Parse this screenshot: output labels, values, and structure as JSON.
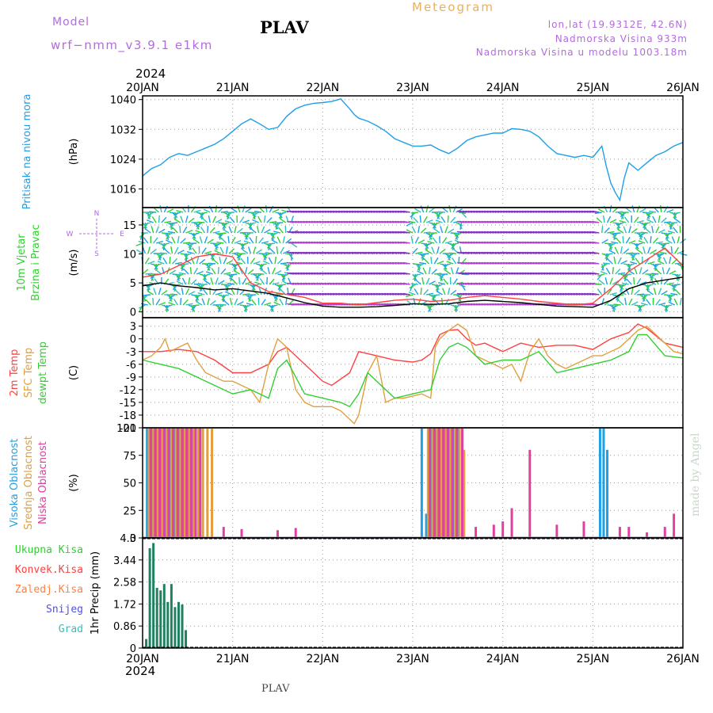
{
  "header": {
    "model_label": "Model",
    "model_name": "wrf−nmm_v3.9.1  e1km",
    "station": "PLAV",
    "meteogram_label": "Meteogram",
    "coords": "lon,lat (19.9312E, 42.6N)",
    "altitude": "Nadmorska Visina 933m",
    "model_altitude": "Nadmorska Visina u modelu 1003.18m",
    "watermark": "made by Angel",
    "footer_station": "PLAV",
    "colors": {
      "purple": "#b26be0",
      "orange": "#e8b060",
      "title": "#000000",
      "watermark": "#c8d8c8"
    }
  },
  "time_axis": {
    "year": "2024",
    "labels": [
      "20JAN",
      "21JAN",
      "22JAN",
      "23JAN",
      "24JAN",
      "25JAN",
      "26JAN"
    ]
  },
  "chart_data": [
    {
      "type": "line",
      "id": "pressure",
      "ylabel_lines": [
        "Pritisak na nivou mora"
      ],
      "unit": "(hPa)",
      "ylim": [
        1011,
        1041
      ],
      "yticks": [
        1016,
        1024,
        1032,
        1040
      ],
      "grid": true,
      "series": [
        {
          "color": "#1ea0e6",
          "x": [
            0,
            0.1,
            0.2,
            0.3,
            0.4,
            0.5,
            0.6,
            0.7,
            0.8,
            0.9,
            1.0,
            1.1,
            1.2,
            1.3,
            1.4,
            1.5,
            1.6,
            1.7,
            1.8,
            1.9,
            2.0,
            2.1,
            2.2,
            2.3,
            2.35,
            2.4,
            2.5,
            2.6,
            2.7,
            2.8,
            2.9,
            3.0,
            3.1,
            3.2,
            3.3,
            3.4,
            3.5,
            3.6,
            3.7,
            3.8,
            3.9,
            4.0,
            4.1,
            4.2,
            4.3,
            4.4,
            4.5,
            4.6,
            4.7,
            4.8,
            4.9,
            5.0,
            5.05,
            5.1,
            5.15,
            5.2,
            5.25,
            5.3,
            5.35,
            5.4,
            5.5,
            5.6,
            5.7,
            5.8,
            5.9,
            6.0
          ],
          "y": [
            1019.5,
            1021.5,
            1022.5,
            1024.5,
            1025.5,
            1025,
            1026,
            1027,
            1028,
            1029.5,
            1031.5,
            1033.5,
            1034.8,
            1033.5,
            1032,
            1032.5,
            1035.5,
            1037.5,
            1038.5,
            1039,
            1039.2,
            1039.5,
            1040.2,
            1037.5,
            1036,
            1035,
            1034.2,
            1033,
            1031.5,
            1029.5,
            1028.5,
            1027.5,
            1027.5,
            1027.8,
            1026.5,
            1025.5,
            1027,
            1029,
            1030,
            1030.5,
            1031,
            1031,
            1032.2,
            1032,
            1031.5,
            1030,
            1027.5,
            1025.5,
            1025,
            1024.5,
            1025,
            1024.5,
            1026,
            1027.5,
            1022,
            1017.5,
            1015,
            1013,
            1019,
            1023,
            1021,
            1023,
            1025,
            1026,
            1027.5,
            1028.5
          ]
        }
      ]
    },
    {
      "type": "wind",
      "id": "wind",
      "ylabel_lines": [
        "10m Vjetar",
        "Brzina i Pravac"
      ],
      "unit": "(m/s)",
      "ylim": [
        -1,
        18
      ],
      "yticks": [
        0,
        5,
        10,
        15
      ],
      "grid": true,
      "compass": {
        "n": "N",
        "w": "W",
        "e": "E",
        "s": "S"
      },
      "series": [
        {
          "name": "speed",
          "color": "#000000",
          "x": [
            0,
            0.2,
            0.4,
            0.6,
            0.8,
            1.0,
            1.2,
            1.4,
            1.6,
            1.8,
            2.0,
            2.2,
            2.4,
            2.6,
            2.8,
            3.0,
            3.2,
            3.4,
            3.6,
            3.8,
            4.0,
            4.2,
            4.4,
            4.6,
            4.8,
            5.0,
            5.2,
            5.4,
            5.6,
            5.8,
            6.0
          ],
          "y": [
            4.5,
            5,
            4.5,
            4.2,
            3.8,
            4,
            3.6,
            3.2,
            2.4,
            1.6,
            1,
            0.8,
            0.8,
            0.9,
            1.1,
            1.4,
            1.3,
            1.4,
            1.8,
            2.0,
            1.8,
            1.6,
            1.3,
            1.0,
            0.9,
            0.8,
            2.0,
            4.0,
            5.0,
            5.5,
            6.0
          ]
        },
        {
          "name": "gust",
          "color": "#ff4040",
          "x": [
            0,
            0.2,
            0.4,
            0.6,
            0.8,
            1.0,
            1.2,
            1.4,
            1.6,
            1.8,
            2.0,
            2.2,
            2.4,
            2.6,
            2.8,
            3.0,
            3.2,
            3.4,
            3.6,
            3.8,
            4.0,
            4.2,
            4.4,
            4.6,
            4.8,
            5.0,
            5.2,
            5.4,
            5.6,
            5.8,
            6.0
          ],
          "y": [
            6,
            6.5,
            8,
            9.5,
            10,
            9.5,
            5,
            3.5,
            3,
            2.5,
            1.5,
            1.5,
            1.2,
            1.6,
            2,
            2.2,
            1.8,
            2,
            2.5,
            2.8,
            2.5,
            2.2,
            1.8,
            1.5,
            1.2,
            1.5,
            4,
            7,
            9,
            11,
            8
          ]
        }
      ]
    },
    {
      "type": "line",
      "id": "temperature",
      "ylabel_lines": [
        "2m Temp",
        "SFC Temp",
        "dewpt Temp"
      ],
      "unit": "(C)",
      "ylim": [
        -21,
        5
      ],
      "yticks": [
        3,
        0,
        -3,
        -6,
        -9,
        -12,
        -15,
        -18,
        -21
      ],
      "grid": true,
      "series": [
        {
          "name": "2m Temp",
          "color": "#ff4040",
          "x": [
            0,
            0.2,
            0.4,
            0.6,
            0.8,
            1.0,
            1.2,
            1.4,
            1.5,
            1.6,
            1.8,
            2.0,
            2.1,
            2.3,
            2.4,
            2.6,
            2.8,
            3.0,
            3.1,
            3.2,
            3.3,
            3.4,
            3.5,
            3.6,
            3.7,
            3.8,
            4.0,
            4.2,
            4.4,
            4.6,
            4.8,
            5.0,
            5.2,
            5.4,
            5.5,
            5.6,
            5.8,
            6.0
          ],
          "y": [
            -3,
            -3,
            -2.5,
            -3,
            -5,
            -8,
            -8,
            -6,
            -3,
            -2,
            -6,
            -10,
            -11,
            -8,
            -3,
            -4,
            -5,
            -5.5,
            -5,
            -3.5,
            1,
            2,
            2.2,
            0,
            -1.5,
            -1,
            -3,
            -1,
            -2,
            -1.5,
            -1.5,
            -2.5,
            0,
            1.5,
            3.5,
            2.5,
            -1,
            -2
          ]
        },
        {
          "name": "SFC Temp",
          "color": "#e0a040",
          "x": [
            0,
            0.1,
            0.2,
            0.25,
            0.3,
            0.4,
            0.5,
            0.6,
            0.7,
            0.8,
            0.9,
            1.0,
            1.1,
            1.2,
            1.3,
            1.4,
            1.5,
            1.6,
            1.7,
            1.8,
            1.9,
            2.0,
            2.1,
            2.2,
            2.3,
            2.35,
            2.4,
            2.5,
            2.6,
            2.7,
            2.8,
            2.9,
            3.0,
            3.1,
            3.2,
            3.25,
            3.3,
            3.4,
            3.5,
            3.6,
            3.7,
            3.8,
            3.9,
            4.0,
            4.1,
            4.2,
            4.3,
            4.4,
            4.5,
            4.6,
            4.7,
            4.8,
            4.9,
            5.0,
            5.1,
            5.2,
            5.3,
            5.4,
            5.5,
            5.6,
            5.7,
            5.8,
            5.9,
            6.0
          ],
          "y": [
            -5,
            -4,
            -2,
            0,
            -3,
            -2,
            -1,
            -5,
            -8,
            -9,
            -10,
            -10,
            -11,
            -12,
            -15,
            -6,
            0,
            -2,
            -12,
            -15,
            -16,
            -16,
            -16,
            -17,
            -19,
            -20,
            -18,
            -8,
            -4,
            -15,
            -14,
            -14,
            -13.5,
            -13,
            -14,
            -2,
            0,
            2,
            3.5,
            2,
            -4,
            -5,
            -6,
            -7,
            -6,
            -10,
            -3,
            0,
            -4,
            -6,
            -7,
            -6,
            -5,
            -4,
            -4,
            -3,
            -2,
            0,
            2,
            3,
            1,
            -1,
            -3,
            -3.5
          ]
        },
        {
          "name": "dewpt Temp",
          "color": "#30d030",
          "x": [
            0,
            0.2,
            0.4,
            0.6,
            0.8,
            1.0,
            1.2,
            1.4,
            1.5,
            1.6,
            1.8,
            2.0,
            2.2,
            2.3,
            2.4,
            2.5,
            2.6,
            2.8,
            3.0,
            3.2,
            3.3,
            3.4,
            3.5,
            3.6,
            3.8,
            4.0,
            4.2,
            4.4,
            4.6,
            4.8,
            5.0,
            5.2,
            5.4,
            5.5,
            5.6,
            5.8,
            6.0
          ],
          "y": [
            -5,
            -6,
            -7,
            -9,
            -11,
            -13,
            -12,
            -14,
            -7,
            -5,
            -13,
            -14,
            -15,
            -16,
            -13,
            -8,
            -10,
            -14,
            -13,
            -12,
            -5,
            -2,
            -1,
            -2,
            -6,
            -5,
            -5,
            -3,
            -8,
            -7,
            -6,
            -5,
            -3,
            1,
            1,
            -4,
            -4.5
          ]
        }
      ]
    },
    {
      "type": "bar",
      "id": "cloud",
      "ylabel_lines": [
        "Visoka Oblacnost",
        "Srednja Oblacnost",
        "Niska Oblacnost"
      ],
      "unit": "(%)",
      "ylim": [
        0,
        100
      ],
      "yticks": [
        0,
        25,
        50,
        75,
        100
      ],
      "grid": true,
      "series": [
        {
          "name": "Visoka Oblacnost",
          "color": "#1ea0e6",
          "x": [
            0.05,
            0.1,
            0.15,
            0.2,
            0.25,
            0.3,
            0.35,
            0.4,
            0.45,
            0.5,
            0.55,
            3.1,
            3.15,
            3.2,
            3.25,
            3.3,
            3.35,
            3.4,
            3.45,
            3.5,
            5.08,
            5.12,
            5.16,
            5.2
          ],
          "y": [
            100,
            100,
            100,
            100,
            100,
            100,
            100,
            100,
            100,
            100,
            100,
            100,
            22,
            100,
            100,
            100,
            100,
            100,
            100,
            100,
            100,
            100,
            80,
            0
          ]
        },
        {
          "name": "Srednja Oblacnost",
          "color": "#e0a040",
          "x": [
            0.07,
            0.12,
            0.17,
            0.22,
            0.27,
            0.32,
            0.37,
            0.42,
            0.47,
            0.52,
            0.57,
            0.62,
            0.67,
            0.72,
            0.77,
            3.17,
            3.22,
            3.27,
            3.32,
            3.37,
            3.42,
            3.47,
            3.52,
            3.57
          ],
          "y": [
            100,
            100,
            100,
            100,
            100,
            100,
            100,
            100,
            100,
            100,
            100,
            100,
            100,
            100,
            100,
            100,
            100,
            100,
            100,
            100,
            100,
            100,
            100,
            80
          ]
        },
        {
          "name": "Niska Oblacnost",
          "color": "#e040a0",
          "x": [
            0.09,
            0.14,
            0.19,
            0.24,
            0.29,
            0.34,
            0.39,
            0.44,
            0.49,
            0.54,
            0.59,
            0.64,
            0.9,
            1.1,
            1.5,
            1.7,
            3.19,
            3.24,
            3.29,
            3.34,
            3.39,
            3.44,
            3.49,
            3.55,
            3.7,
            3.9,
            4.0,
            4.1,
            4.3,
            4.6,
            4.9,
            5.3,
            5.4,
            5.6,
            5.8,
            5.9
          ],
          "y": [
            100,
            100,
            100,
            100,
            100,
            100,
            100,
            100,
            100,
            100,
            100,
            100,
            10,
            8,
            7,
            9,
            100,
            100,
            100,
            100,
            100,
            100,
            100,
            100,
            10,
            12,
            15,
            27,
            80,
            12,
            15,
            10,
            10,
            5,
            10,
            22
          ]
        }
      ]
    },
    {
      "type": "bar",
      "id": "precip",
      "ylabel_lines": [
        "Ukupna Kisa",
        "Konvek.Kisa",
        "Zaledj.Kisa",
        "Snijeg",
        "Grad"
      ],
      "series_colors": [
        "#30d030",
        "#ff4040",
        "#ff8040",
        "#5050e0",
        "#30c0c0"
      ],
      "unit": "1hr Precip (mm)",
      "ylim": [
        0,
        4.3
      ],
      "yticks": [
        0,
        0.86,
        1.72,
        2.58,
        3.44,
        4.3
      ],
      "grid": true,
      "series": [
        {
          "name": "Ukupna Kisa",
          "color": "#208060",
          "x": [
            0.04,
            0.08,
            0.12,
            0.16,
            0.2,
            0.24,
            0.28,
            0.32,
            0.36,
            0.4,
            0.44,
            0.48,
            0.52,
            0.56
          ],
          "y": [
            0.35,
            3.9,
            4.1,
            2.35,
            2.25,
            2.5,
            1.8,
            2.5,
            1.6,
            1.8,
            1.7,
            0.7,
            0,
            0
          ]
        }
      ]
    }
  ]
}
